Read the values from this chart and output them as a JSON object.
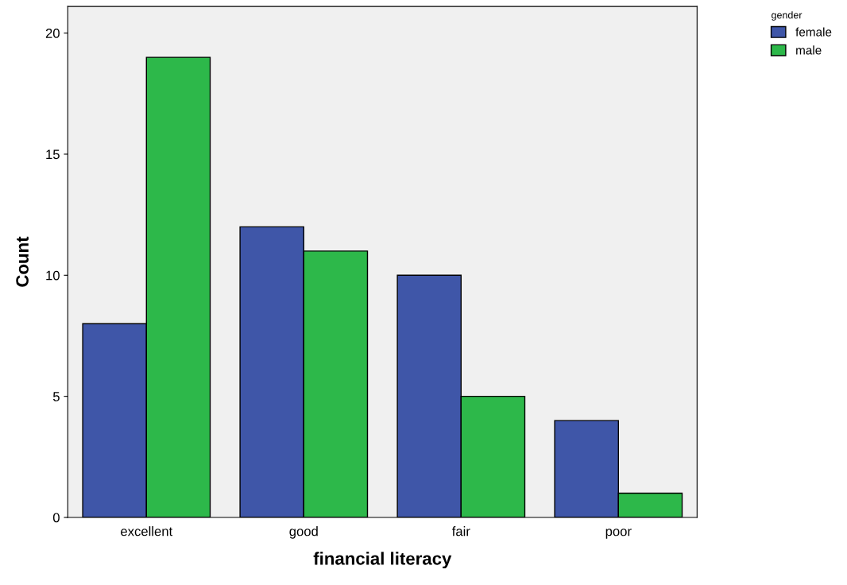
{
  "chart_data": {
    "type": "bar",
    "xlabel": "financial literacy",
    "ylabel": "Count",
    "legend_title": "gender",
    "categories": [
      "excellent",
      "good",
      "fair",
      "poor"
    ],
    "series": [
      {
        "name": "female",
        "color": "#3f56a8",
        "values": [
          8,
          12,
          10,
          4
        ]
      },
      {
        "name": "male",
        "color": "#2db84a",
        "values": [
          19,
          11,
          5,
          1
        ]
      }
    ],
    "ylim": [
      0,
      21.1
    ],
    "yticks": [
      0,
      5,
      10,
      15,
      20
    ],
    "grid": false,
    "legend": "top right"
  }
}
